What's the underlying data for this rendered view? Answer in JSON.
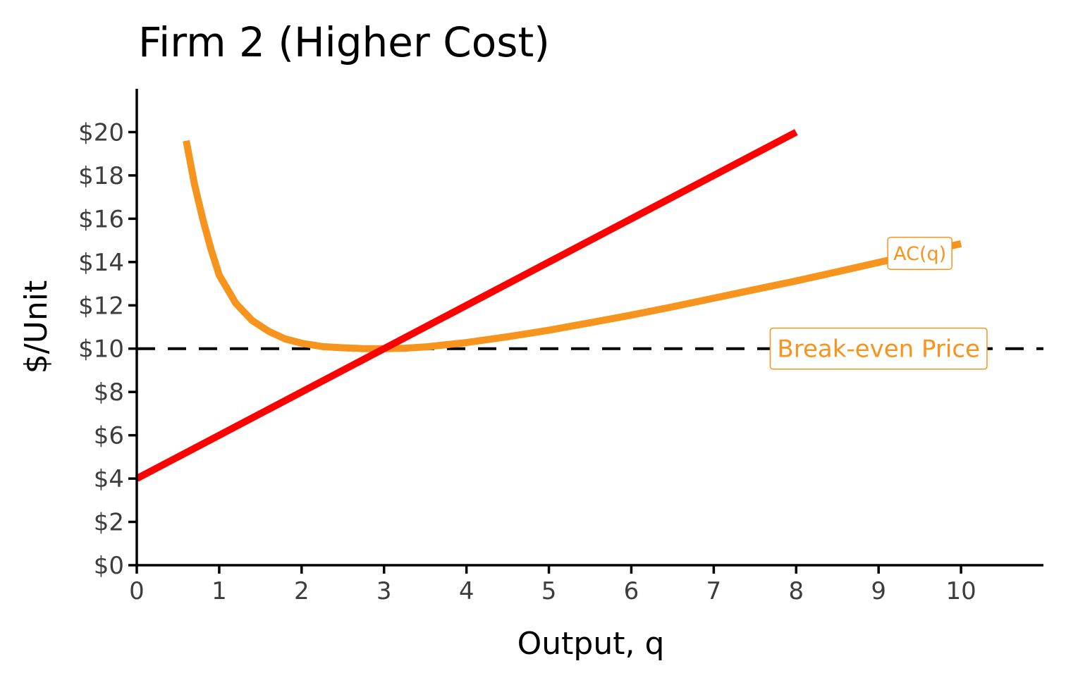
{
  "chart_data": {
    "type": "line",
    "title": "Firm 2 (Higher Cost)",
    "xlabel": "Output, q",
    "ylabel": "$/Unit",
    "xlim": [
      0,
      11
    ],
    "ylim": [
      0,
      22
    ],
    "x_ticks": [
      0,
      1,
      2,
      3,
      4,
      5,
      6,
      7,
      8,
      9,
      10
    ],
    "x_tick_labels": [
      "0",
      "1",
      "2",
      "3",
      "4",
      "5",
      "6",
      "7",
      "8",
      "9",
      "10"
    ],
    "y_ticks": [
      0,
      2,
      4,
      6,
      8,
      10,
      12,
      14,
      16,
      18,
      20
    ],
    "y_tick_labels": [
      "$0",
      "$2",
      "$4",
      "$6",
      "$8",
      "$10",
      "$12",
      "$14",
      "$16",
      "$18",
      "$20"
    ],
    "grid": false,
    "series": [
      {
        "color": "#f7941d",
        "style": "solid",
        "x": [
          0.6,
          0.7,
          0.8,
          0.9,
          1.0,
          1.2,
          1.4,
          1.6,
          1.8,
          2.0,
          2.25,
          2.5,
          2.75,
          3.0,
          3.25,
          3.5,
          4.0,
          4.5,
          5.0,
          5.5,
          6.0,
          6.5,
          7.0,
          7.5,
          8.0,
          8.5,
          9.0,
          9.5,
          10.0
        ],
        "y": [
          19.6,
          17.6,
          16.0,
          14.6,
          13.4,
          12.1,
          11.3,
          10.8,
          10.45,
          10.25,
          10.1,
          10.04,
          10.0,
          10.0,
          10.02,
          10.08,
          10.28,
          10.55,
          10.85,
          11.2,
          11.55,
          11.93,
          12.33,
          12.73,
          13.13,
          13.55,
          13.98,
          14.4,
          14.85
        ]
      },
      {
        "color": "#ff0000",
        "style": "solid",
        "x": [
          0,
          8
        ],
        "y": [
          4,
          20
        ]
      },
      {
        "color": "#000000",
        "style": "dashed",
        "x": [
          0,
          11
        ],
        "y": [
          10,
          10
        ]
      }
    ],
    "annotations": [
      {
        "text": "AC(q)",
        "x": 9.5,
        "y": 14.4,
        "color": "#f7941d",
        "size": "small"
      },
      {
        "text": "Break-even Price",
        "x": 9.0,
        "y": 10,
        "color": "#f7941d",
        "size": "large"
      }
    ]
  }
}
